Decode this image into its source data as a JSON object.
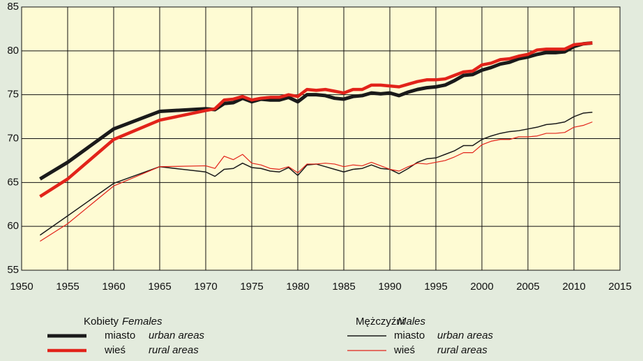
{
  "chart_data": {
    "type": "line",
    "x": [
      1952,
      1955,
      1960,
      1965,
      1970,
      1971,
      1972,
      1973,
      1974,
      1975,
      1976,
      1977,
      1978,
      1979,
      1980,
      1981,
      1982,
      1983,
      1984,
      1985,
      1986,
      1987,
      1988,
      1989,
      1990,
      1991,
      1992,
      1993,
      1994,
      1995,
      1996,
      1997,
      1998,
      1999,
      2000,
      2001,
      2002,
      2003,
      2004,
      2005,
      2006,
      2007,
      2008,
      2009,
      2010,
      2011,
      2012
    ],
    "legend": {
      "groups": [
        {
          "title": "Kobiety",
          "title_en": "Females"
        },
        {
          "title": "Mężczyźni",
          "title_en": "Males"
        }
      ]
    },
    "series": [
      {
        "name": "miasto",
        "name_en": "urban areas",
        "group": 0,
        "color": "#1a1a1a",
        "values": [
          65.4,
          67.3,
          71.1,
          73.1,
          73.4,
          73.3,
          74.0,
          74.1,
          74.6,
          74.2,
          74.5,
          74.4,
          74.4,
          74.7,
          74.2,
          75.0,
          75.0,
          74.9,
          74.6,
          74.5,
          74.8,
          74.9,
          75.2,
          75.1,
          75.2,
          74.9,
          75.3,
          75.6,
          75.8,
          75.9,
          76.1,
          76.6,
          77.2,
          77.3,
          77.8,
          78.1,
          78.5,
          78.7,
          79.1,
          79.3,
          79.6,
          79.8,
          79.8,
          79.9,
          80.5,
          80.8,
          80.9
        ]
      },
      {
        "name": "wieś",
        "name_en": "rural areas",
        "group": 0,
        "color": "#e2231a",
        "values": [
          63.4,
          65.4,
          69.9,
          72.1,
          73.2,
          73.4,
          74.4,
          74.5,
          74.8,
          74.4,
          74.6,
          74.7,
          74.7,
          75.0,
          74.8,
          75.6,
          75.5,
          75.6,
          75.4,
          75.2,
          75.6,
          75.6,
          76.1,
          76.1,
          76.0,
          75.9,
          76.2,
          76.5,
          76.7,
          76.7,
          76.8,
          77.2,
          77.6,
          77.7,
          78.4,
          78.6,
          79.0,
          79.1,
          79.4,
          79.6,
          80.1,
          80.2,
          80.2,
          80.2,
          80.7,
          80.8,
          80.9
        ]
      },
      {
        "name": "miasto",
        "name_en": "urban areas",
        "group": 1,
        "color": "#1a1a1a",
        "values": [
          59.0,
          61.2,
          64.9,
          66.8,
          66.2,
          65.7,
          66.5,
          66.6,
          67.2,
          66.7,
          66.6,
          66.3,
          66.2,
          66.7,
          65.8,
          67.0,
          67.1,
          66.8,
          66.5,
          66.2,
          66.5,
          66.6,
          67.0,
          66.6,
          66.5,
          66.0,
          66.6,
          67.3,
          67.7,
          67.8,
          68.2,
          68.6,
          69.2,
          69.2,
          69.9,
          70.3,
          70.6,
          70.8,
          70.9,
          71.1,
          71.3,
          71.6,
          71.7,
          71.9,
          72.5,
          72.9,
          73.0
        ]
      },
      {
        "name": "wieś",
        "name_en": "rural areas",
        "group": 1,
        "color": "#e2231a",
        "values": [
          58.3,
          60.3,
          64.6,
          66.8,
          66.9,
          66.6,
          68.0,
          67.6,
          68.2,
          67.2,
          67.0,
          66.6,
          66.5,
          66.8,
          66.1,
          67.1,
          67.1,
          67.2,
          67.1,
          66.8,
          67.0,
          66.9,
          67.3,
          66.9,
          66.5,
          66.3,
          66.8,
          67.2,
          67.1,
          67.3,
          67.5,
          67.9,
          68.4,
          68.4,
          69.3,
          69.7,
          69.9,
          69.9,
          70.2,
          70.2,
          70.3,
          70.6,
          70.6,
          70.7,
          71.3,
          71.5,
          71.9
        ]
      }
    ],
    "xlim": [
      1950,
      2015
    ],
    "xticks": [
      1950,
      1955,
      1960,
      1965,
      1970,
      1975,
      1980,
      1985,
      1990,
      1995,
      2000,
      2005,
      2010,
      2015
    ],
    "ylim": [
      55,
      85
    ],
    "yticks": [
      55,
      60,
      65,
      70,
      75,
      80,
      85
    ],
    "grid": true
  }
}
